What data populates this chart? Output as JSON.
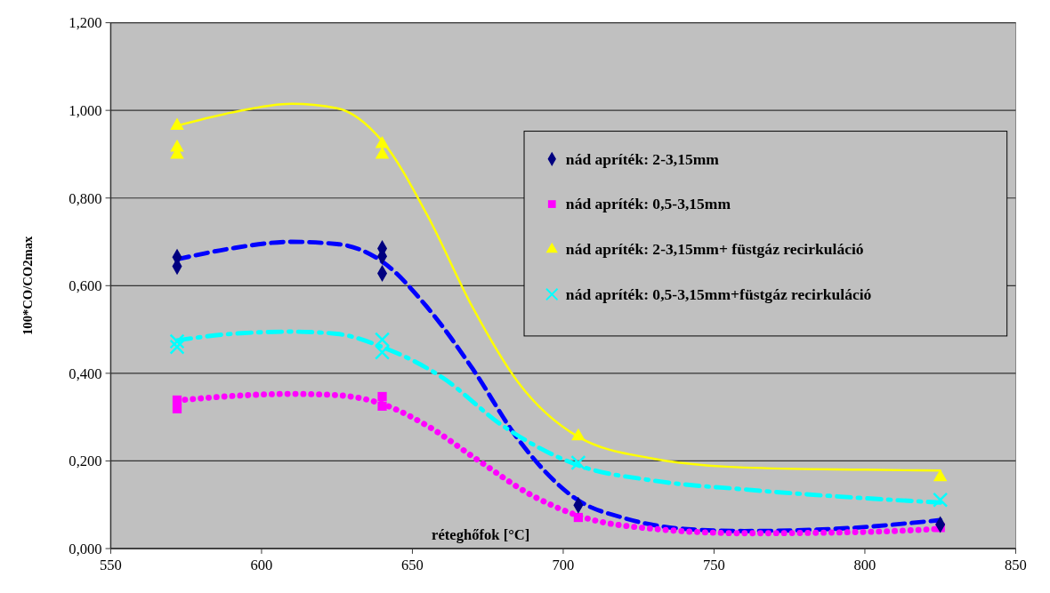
{
  "chart_data": {
    "type": "scatter",
    "xlabel": "réteghőfok [°C]",
    "ylabel": "100*CO/CO2max",
    "xlim": [
      550,
      850
    ],
    "xticks": [
      550,
      600,
      650,
      700,
      750,
      800,
      850
    ],
    "ylim": [
      0,
      1.2
    ],
    "yticks": [
      {
        "value": 0,
        "label": "0,000"
      },
      {
        "value": 0.2,
        "label": "0,200"
      },
      {
        "value": 0.4,
        "label": "0,400"
      },
      {
        "value": 0.6,
        "label": "0,600"
      },
      {
        "value": 0.8,
        "label": "0,800"
      },
      {
        "value": 1,
        "label": "1,000"
      },
      {
        "value": 1.2,
        "label": "1,200"
      }
    ],
    "grid": "y",
    "legend": "top right",
    "series": [
      {
        "type": "line",
        "color": "#ffff00",
        "line_style": "solid",
        "marker": "none",
        "x": [
          572,
          590,
          610,
          625,
          640,
          655,
          670,
          685,
          705,
          730,
          760,
          800,
          825
        ],
        "values": [
          0.965,
          0.995,
          1.015,
          1.005,
          0.93,
          0.76,
          0.55,
          0.38,
          0.255,
          0.205,
          0.185,
          0.18,
          0.178
        ]
      },
      {
        "type": "line",
        "color": "#0000ff",
        "line_style": "dashed",
        "marker": "none",
        "x": [
          572,
          590,
          610,
          625,
          640,
          655,
          670,
          685,
          705,
          720,
          740,
          760,
          790,
          825
        ],
        "values": [
          0.66,
          0.685,
          0.7,
          0.695,
          0.655,
          0.55,
          0.41,
          0.25,
          0.11,
          0.07,
          0.045,
          0.04,
          0.045,
          0.065
        ]
      },
      {
        "type": "line",
        "color": "#00ffff",
        "line_style": "dashdot",
        "marker": "none",
        "x": [
          572,
          590,
          610,
          625,
          640,
          660,
          680,
          705,
          730,
          760,
          800,
          825
        ],
        "values": [
          0.475,
          0.49,
          0.495,
          0.49,
          0.46,
          0.39,
          0.28,
          0.19,
          0.155,
          0.135,
          0.115,
          0.105
        ]
      },
      {
        "type": "line",
        "color": "#ff00ff",
        "line_style": "dotted",
        "marker": "none",
        "x": [
          572,
          590,
          610,
          625,
          640,
          655,
          670,
          690,
          705,
          730,
          760,
          800,
          825
        ],
        "values": [
          0.338,
          0.348,
          0.353,
          0.35,
          0.33,
          0.28,
          0.21,
          0.12,
          0.075,
          0.045,
          0.035,
          0.038,
          0.045
        ]
      },
      {
        "name": "nád apríték: 2-3,15mm",
        "color": "#000080",
        "marker": "diamond",
        "x": [
          572,
          572,
          640,
          640,
          640,
          705,
          825
        ],
        "values": [
          0.665,
          0.644,
          0.685,
          0.667,
          0.628,
          0.099,
          0.055
        ]
      },
      {
        "name": "nád apríték: 0,5-3,15mm",
        "color": "#ff00ff",
        "marker": "square",
        "x": [
          572,
          572,
          640,
          640,
          705,
          825
        ],
        "values": [
          0.339,
          0.319,
          0.347,
          0.325,
          0.071,
          0.048
        ]
      },
      {
        "name": "nád apríték: 2-3,15mm+ füstgáz recirkuláció",
        "color": "#ffff00",
        "marker": "triangle",
        "x": [
          572,
          572,
          572,
          640,
          640,
          705,
          825
        ],
        "values": [
          0.965,
          0.915,
          0.899,
          0.923,
          0.899,
          0.256,
          0.163
        ]
      },
      {
        "name": "nád apríték: 0,5-3,15mm+füstgáz recirkuláció",
        "color": "#00ffff",
        "marker": "cross",
        "x": [
          572,
          572,
          640,
          640,
          705,
          825
        ],
        "values": [
          0.473,
          0.46,
          0.477,
          0.448,
          0.196,
          0.111
        ]
      }
    ]
  }
}
